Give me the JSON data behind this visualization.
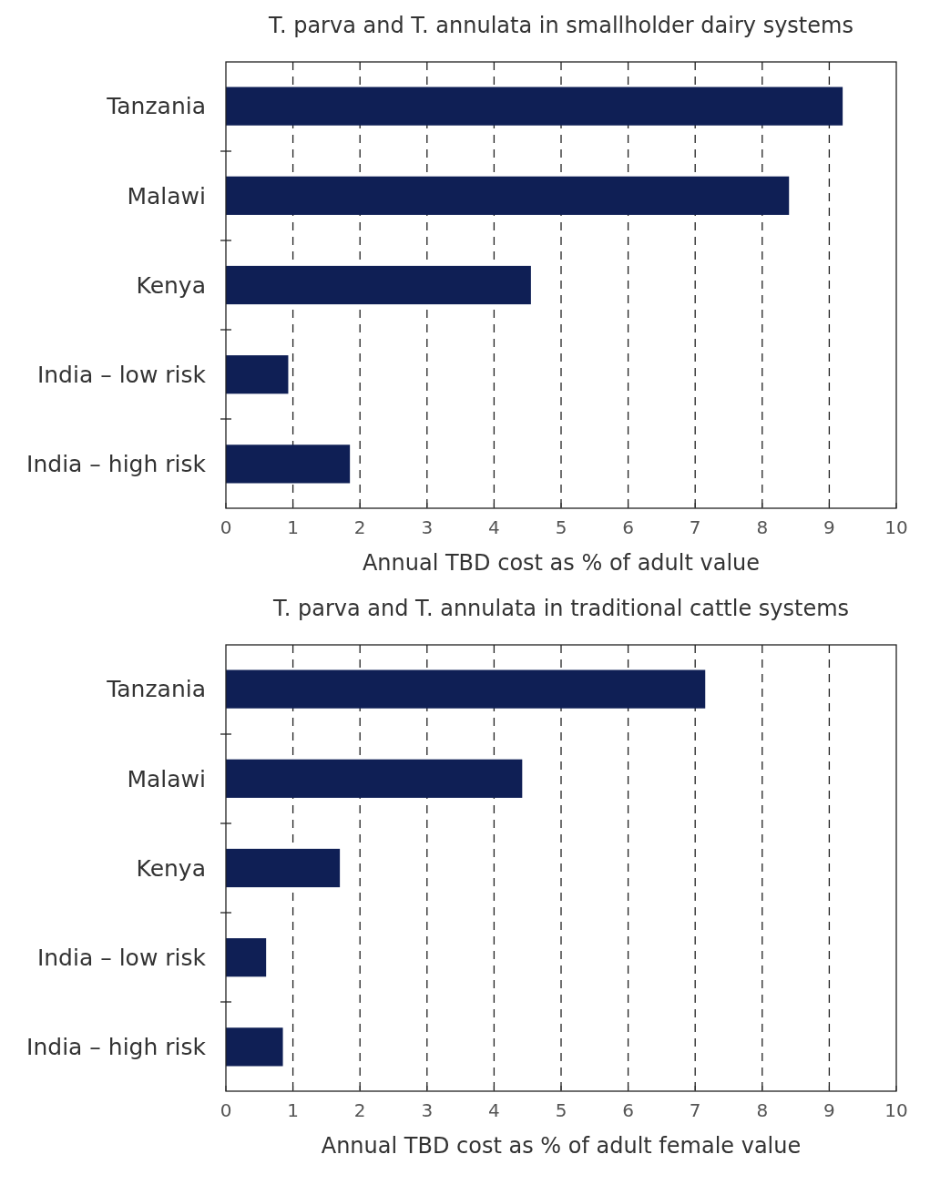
{
  "chart_data": [
    {
      "type": "bar",
      "orientation": "horizontal",
      "title": "T. parva and T. annulata in smallholder dairy systems",
      "xlabel": "Annual TBD cost as % of adult value",
      "categories": [
        "Tanzania",
        "Malawi",
        "Kenya",
        "India – low risk",
        "India – high risk"
      ],
      "values": [
        9.2,
        8.4,
        4.55,
        0.93,
        1.85
      ],
      "color": "#0f1f55",
      "xlim": [
        0,
        10
      ],
      "xticks": [
        0,
        1,
        2,
        3,
        4,
        5,
        6,
        7,
        8,
        9,
        10
      ],
      "grid": "x"
    },
    {
      "type": "bar",
      "orientation": "horizontal",
      "title": "T. parva and T. annulata in traditional cattle systems",
      "xlabel": "Annual TBD cost as % of adult female value",
      "categories": [
        "Tanzania",
        "Malawi",
        "Kenya",
        "India – low risk",
        "India – high risk"
      ],
      "values": [
        7.15,
        4.42,
        1.7,
        0.6,
        0.85
      ],
      "color": "#0f1f55",
      "xlim": [
        0,
        10
      ],
      "xticks": [
        0,
        1,
        2,
        3,
        4,
        5,
        6,
        7,
        8,
        9,
        10
      ],
      "grid": "x"
    }
  ]
}
